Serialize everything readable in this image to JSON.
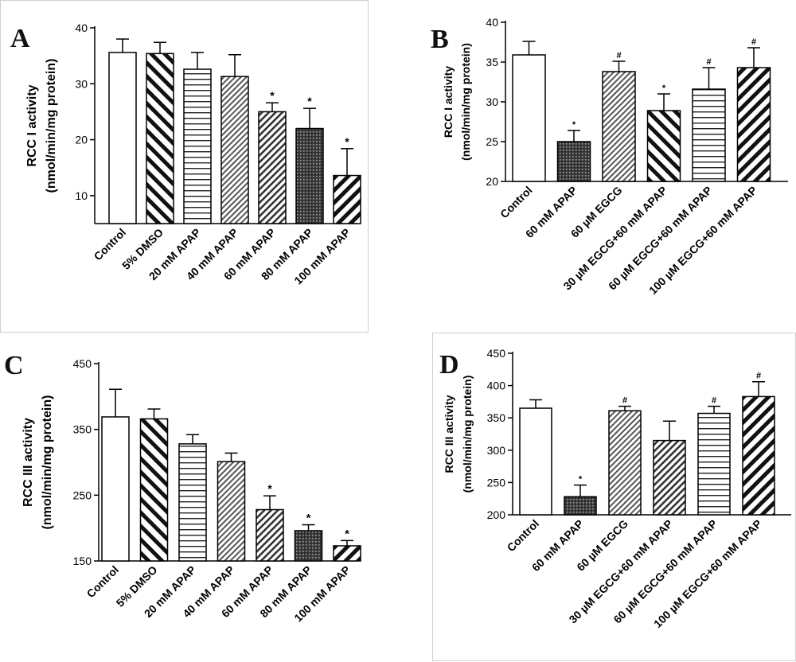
{
  "chart_data": [
    {
      "panel_letter": "A",
      "type": "bar",
      "ylabel_line1": "RCC I activity",
      "ylabel_line2": "(nmol/min/mg protein)",
      "ylim": [
        5,
        40
      ],
      "yticks": [
        10,
        20,
        30,
        40
      ],
      "categories": [
        "Control",
        "5% DMSO",
        "20 mM APAP",
        "40 mM APAP",
        "60 mM APAP",
        "80 mM APAP",
        "100 mM APAP"
      ],
      "values": [
        35.6,
        35.4,
        32.6,
        31.3,
        25.0,
        22.0,
        13.6
      ],
      "errors": [
        2.4,
        2.0,
        3.0,
        3.9,
        1.6,
        3.6,
        4.8
      ],
      "markers": [
        "",
        "",
        "",
        "",
        "*",
        "*",
        "*"
      ],
      "patterns": [
        "white",
        "diag-left-wide",
        "horizontal",
        "diag-right-fine",
        "diag-right-medium",
        "crosshatch-dark",
        "diag-right-bold"
      ]
    },
    {
      "panel_letter": "B",
      "type": "bar",
      "ylabel_line1": "RCC I activity",
      "ylabel_line2": "(nmol/min/mg protein)",
      "ylim": [
        20,
        40
      ],
      "yticks": [
        20,
        25,
        30,
        35,
        40
      ],
      "categories": [
        "Control",
        "60 mM APAP",
        "60 µM EGCG",
        "30 µM EGCG+60 mM APAP",
        "60 µM EGCG+60 mM APAP",
        "100 µM EGCG+60 mM APAP"
      ],
      "values": [
        35.9,
        25.0,
        33.8,
        28.9,
        31.6,
        34.3
      ],
      "errors": [
        1.7,
        1.4,
        1.3,
        2.1,
        2.7,
        2.5
      ],
      "markers": [
        "",
        "*",
        "#",
        "*",
        "#",
        "#"
      ],
      "patterns": [
        "white",
        "crosshatch-dark",
        "diag-right-fine",
        "diag-left-wide",
        "horizontal",
        "diag-right-bold"
      ]
    },
    {
      "panel_letter": "C",
      "type": "bar",
      "ylabel_line1": "RCC III activity",
      "ylabel_line2": "(nmol/min/mg protein)",
      "ylim": [
        150,
        450
      ],
      "yticks": [
        150,
        250,
        350,
        450
      ],
      "categories": [
        "Control",
        "5% DMSO",
        "20 mM APAP",
        "40 mM APAP",
        "60 mM APAP",
        "80 mM APAP",
        "100 mM APAP"
      ],
      "values": [
        369,
        366,
        328,
        301,
        228,
        196,
        173
      ],
      "errors": [
        42,
        15,
        14,
        13,
        21,
        9,
        8
      ],
      "markers": [
        "",
        "",
        "",
        "",
        "*",
        "*",
        "*"
      ],
      "patterns": [
        "white",
        "diag-left-wide",
        "horizontal",
        "diag-right-fine",
        "diag-right-medium",
        "crosshatch-dark",
        "diag-right-bold"
      ]
    },
    {
      "panel_letter": "D",
      "type": "bar",
      "ylabel_line1": "RCC III activity",
      "ylabel_line2": "(nmol/min/mg protein)",
      "ylim": [
        200,
        450
      ],
      "yticks": [
        200,
        250,
        300,
        350,
        400,
        450
      ],
      "categories": [
        "Control",
        "60 mM APAP",
        "60 µM EGCG",
        "30 µM EGCG+60 mM APAP",
        "60 µM EGCG+60 mM APAP",
        "100 µM EGCG+60 mM APAP"
      ],
      "values": [
        365,
        228,
        361,
        315,
        357,
        383
      ],
      "errors": [
        13,
        18,
        7,
        30,
        11,
        23
      ],
      "markers": [
        "",
        "*",
        "#",
        "",
        "#",
        "#"
      ],
      "patterns": [
        "white",
        "crosshatch-dark",
        "diag-right-fine",
        "diag-right-medium",
        "horizontal",
        "diag-right-bold"
      ]
    }
  ]
}
